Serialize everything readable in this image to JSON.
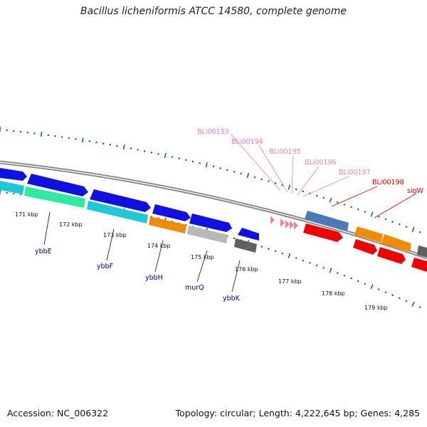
{
  "title": "Bacillus licheniformis ATCC 14580, complete genome",
  "footer": {
    "accession": "Accession: NC_006322",
    "topology": "Topology: circular; Length: 4,222,645 bp; Genes: 4,285"
  },
  "scale": {
    "labels": [
      "171 kbp",
      "172 kbp",
      "173 kbp",
      "174 kbp",
      "175 kbp",
      "176 kbp",
      "177 kbp",
      "178 kbp",
      "179 kbp"
    ]
  },
  "gene_labels": [
    {
      "text": "ybbE",
      "color": "#00008b"
    },
    {
      "text": "ybbF",
      "color": "#00008b"
    },
    {
      "text": "ybbH",
      "color": "#00008b"
    },
    {
      "text": "murQ",
      "color": "#00008b"
    },
    {
      "text": "ybbK",
      "color": "#00008b"
    },
    {
      "text": "BLi00193",
      "color": "#f080b0"
    },
    {
      "text": "BLi00194",
      "color": "#f080b0"
    },
    {
      "text": "BLi00195",
      "color": "#f080b0"
    },
    {
      "text": "BLi00196",
      "color": "#f080b0"
    },
    {
      "text": "BLi00197",
      "color": "#f080b0"
    },
    {
      "text": "BLi00198",
      "color": "#dd0000"
    },
    {
      "text": "sigW",
      "color": "#dd0000"
    }
  ],
  "colors": {
    "blue": "#1010e0",
    "cyan": "#20c8d8",
    "green": "#30e8a0",
    "orange": "#f08c00",
    "gray": "#b8b8b8",
    "darkgray": "#606060",
    "steelblue": "#4a7ab8",
    "red": "#ee0000",
    "pink": "#f080b0",
    "tick": "#1a7a1a",
    "backbone": "#888888"
  }
}
